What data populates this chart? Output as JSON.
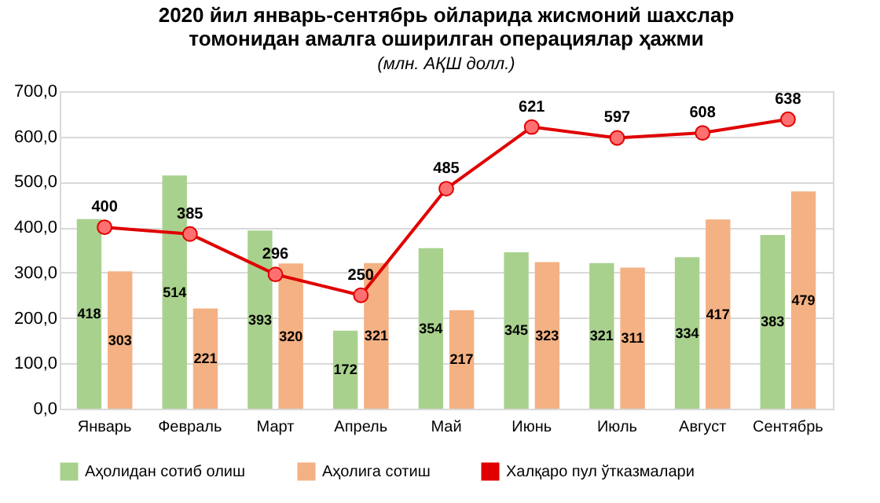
{
  "chart_data": {
    "type": "bar",
    "title": "2020 йил январь-сентябрь ойларида жисмоний шахслар\nтомонидан амалга оширилган операциялар ҳажми",
    "subtitle": "(млн. АҚШ долл.)",
    "categories": [
      "Январь",
      "Февраль",
      "Март",
      "Апрель",
      "Май",
      "Июнь",
      "Июль",
      "Август",
      "Сентябрь"
    ],
    "series": [
      {
        "name": "Аҳолидан сотиб олиш",
        "color": "#a9d18e",
        "values": [
          418,
          514,
          393,
          172,
          354,
          345,
          321,
          334,
          383
        ]
      },
      {
        "name": "Аҳолига сотиш",
        "color": "#f4b183",
        "values": [
          303,
          221,
          320,
          321,
          217,
          323,
          311,
          417,
          479
        ]
      },
      {
        "name": "Халқаро пул ўтказмалари",
        "type": "line",
        "color": "#e00000",
        "marker": "circle",
        "values": [
          400,
          385,
          296,
          250,
          485,
          621,
          597,
          608,
          638
        ]
      }
    ],
    "ylim": [
      0,
      700
    ],
    "yticks": [
      {
        "value": 0,
        "label": "0,0"
      },
      {
        "value": 100,
        "label": "100,0"
      },
      {
        "value": 200,
        "label": "200,0"
      },
      {
        "value": 300,
        "label": "300,0"
      },
      {
        "value": 400,
        "label": "400,0"
      },
      {
        "value": 500,
        "label": "500,0"
      },
      {
        "value": 600,
        "label": "600,0"
      },
      {
        "value": 700,
        "label": "700,0"
      }
    ],
    "grid": "y",
    "legend": "bottom",
    "data_labels": true
  }
}
